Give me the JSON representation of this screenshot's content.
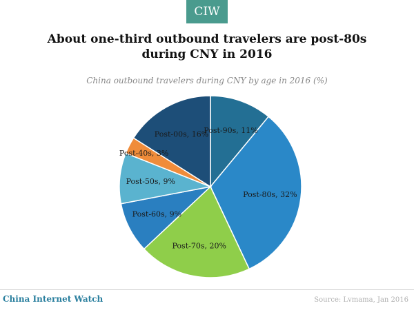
{
  "brand": {
    "logo_text": "CIW",
    "logo_color": "#4a9b8e"
  },
  "headline": {
    "line1": "About one-third outbound travelers are post-80s",
    "line2": "during CNY in 2016"
  },
  "chart_data": {
    "type": "pie",
    "title": "China outbound travelers during CNY by age in 2016 (%)",
    "unit": "%",
    "slices": [
      {
        "label": "Post-90s",
        "value": 11,
        "display": "Post-90s, 11%",
        "color": "#236f94"
      },
      {
        "label": "Post-80s",
        "value": 32,
        "display": "Post-80s, 32%",
        "color": "#2a88c8"
      },
      {
        "label": "Post-70s",
        "value": 20,
        "display": "Post-70s, 20%",
        "color": "#8fce4a"
      },
      {
        "label": "Post-60s",
        "value": 9,
        "display": "Post-60s, 9%",
        "color": "#2a7fc0"
      },
      {
        "label": "Post-50s",
        "value": 9,
        "display": "Post-50s, 9%",
        "color": "#5ab3cf"
      },
      {
        "label": "Post-40s",
        "value": 3,
        "display": "Post-40s, 3%",
        "color": "#f08c3a"
      },
      {
        "label": "Post-00s",
        "value": 16,
        "display": "Post-00s, 16%",
        "color": "#1d4e78"
      }
    ]
  },
  "footer": {
    "brand_text": "China Internet Watch",
    "source_text": "Source: Lvmama, Jan 2016"
  }
}
